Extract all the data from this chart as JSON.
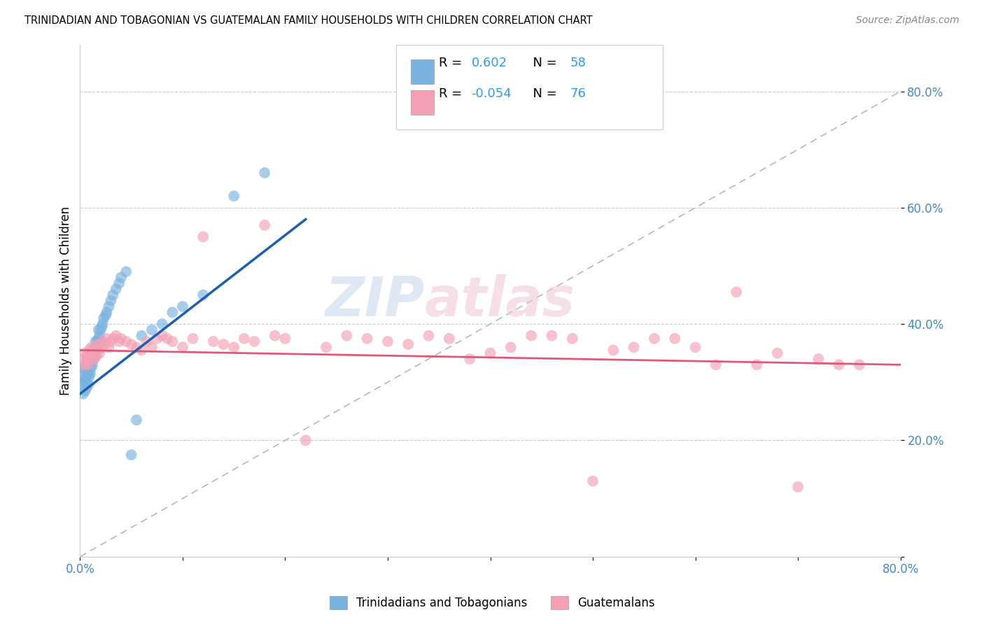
{
  "title": "TRINIDADIAN AND TOBAGONIAN VS GUATEMALAN FAMILY HOUSEHOLDS WITH CHILDREN CORRELATION CHART",
  "source": "Source: ZipAtlas.com",
  "ylabel": "Family Households with Children",
  "xlim": [
    0.0,
    0.8
  ],
  "ylim": [
    0.0,
    0.88
  ],
  "blue_R": 0.602,
  "blue_N": 58,
  "pink_R": -0.054,
  "pink_N": 76,
  "blue_color": "#7ab3e0",
  "pink_color": "#f4a0b5",
  "blue_line_color": "#1a5fb0",
  "pink_line_color": "#e05878",
  "ref_line_color": "#b0b8cc",
  "grid_color": "#cccccc",
  "legend_label_blue": "Trinidadians and Tobagonians",
  "legend_label_pink": "Guatemalans",
  "blue_x": [
    0.002,
    0.003,
    0.003,
    0.004,
    0.004,
    0.005,
    0.005,
    0.005,
    0.006,
    0.006,
    0.006,
    0.007,
    0.007,
    0.007,
    0.008,
    0.008,
    0.008,
    0.009,
    0.009,
    0.01,
    0.01,
    0.011,
    0.011,
    0.012,
    0.012,
    0.013,
    0.013,
    0.014,
    0.015,
    0.015,
    0.016,
    0.017,
    0.018,
    0.018,
    0.019,
    0.02,
    0.021,
    0.022,
    0.023,
    0.025,
    0.026,
    0.028,
    0.03,
    0.032,
    0.035,
    0.038,
    0.04,
    0.045,
    0.05,
    0.055,
    0.06,
    0.07,
    0.08,
    0.09,
    0.1,
    0.12,
    0.15,
    0.18
  ],
  "blue_y": [
    0.295,
    0.31,
    0.28,
    0.3,
    0.325,
    0.285,
    0.305,
    0.32,
    0.29,
    0.31,
    0.33,
    0.3,
    0.315,
    0.335,
    0.295,
    0.315,
    0.34,
    0.31,
    0.33,
    0.315,
    0.335,
    0.325,
    0.345,
    0.33,
    0.35,
    0.34,
    0.355,
    0.345,
    0.355,
    0.37,
    0.36,
    0.37,
    0.375,
    0.39,
    0.38,
    0.39,
    0.395,
    0.4,
    0.41,
    0.415,
    0.42,
    0.43,
    0.44,
    0.45,
    0.46,
    0.47,
    0.48,
    0.49,
    0.175,
    0.235,
    0.38,
    0.39,
    0.4,
    0.42,
    0.43,
    0.45,
    0.62,
    0.66
  ],
  "pink_x": [
    0.003,
    0.004,
    0.005,
    0.006,
    0.007,
    0.008,
    0.009,
    0.01,
    0.011,
    0.012,
    0.013,
    0.014,
    0.015,
    0.016,
    0.017,
    0.018,
    0.019,
    0.02,
    0.022,
    0.024,
    0.026,
    0.028,
    0.03,
    0.032,
    0.035,
    0.038,
    0.04,
    0.045,
    0.05,
    0.055,
    0.06,
    0.065,
    0.07,
    0.075,
    0.08,
    0.085,
    0.09,
    0.1,
    0.11,
    0.12,
    0.13,
    0.14,
    0.15,
    0.16,
    0.17,
    0.18,
    0.19,
    0.2,
    0.22,
    0.24,
    0.26,
    0.28,
    0.3,
    0.32,
    0.34,
    0.36,
    0.38,
    0.4,
    0.42,
    0.44,
    0.46,
    0.48,
    0.5,
    0.52,
    0.54,
    0.56,
    0.58,
    0.6,
    0.62,
    0.64,
    0.66,
    0.68,
    0.7,
    0.72,
    0.74,
    0.76
  ],
  "pink_y": [
    0.34,
    0.33,
    0.35,
    0.335,
    0.345,
    0.33,
    0.355,
    0.345,
    0.36,
    0.34,
    0.35,
    0.34,
    0.36,
    0.345,
    0.355,
    0.365,
    0.35,
    0.36,
    0.37,
    0.365,
    0.375,
    0.36,
    0.37,
    0.375,
    0.38,
    0.37,
    0.375,
    0.37,
    0.365,
    0.36,
    0.355,
    0.37,
    0.36,
    0.375,
    0.38,
    0.375,
    0.37,
    0.36,
    0.375,
    0.55,
    0.37,
    0.365,
    0.36,
    0.375,
    0.37,
    0.57,
    0.38,
    0.375,
    0.2,
    0.36,
    0.38,
    0.375,
    0.37,
    0.365,
    0.38,
    0.375,
    0.34,
    0.35,
    0.36,
    0.38,
    0.38,
    0.375,
    0.13,
    0.355,
    0.36,
    0.375,
    0.375,
    0.36,
    0.33,
    0.455,
    0.33,
    0.35,
    0.12,
    0.34,
    0.33,
    0.33
  ]
}
